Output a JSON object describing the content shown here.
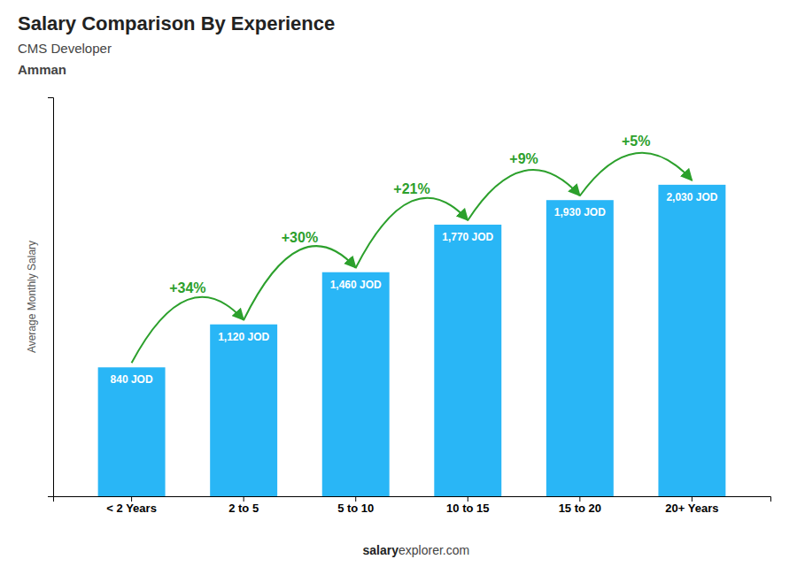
{
  "chart_data": {
    "type": "bar",
    "title": "Salary Comparison By Experience",
    "subtitle": "CMS Developer",
    "location": "Amman",
    "ylabel": "Average Monthly Salary",
    "footer": [
      "salary",
      "explorer.com"
    ],
    "categories": [
      "< 2 Years",
      "2 to 5",
      "5 to 10",
      "10 to 15",
      "15 to 20",
      "20+ Years"
    ],
    "values": [
      840,
      1120,
      1460,
      1770,
      1930,
      2030
    ],
    "value_labels": [
      "840 JOD",
      "1,120 JOD",
      "1,460 JOD",
      "1,770 JOD",
      "1,930 JOD",
      "2,030 JOD"
    ],
    "annotations": [
      "+34%",
      "+30%",
      "+21%",
      "+9%",
      "+5%"
    ],
    "color": "#29b6f6",
    "ylim": [
      0,
      2600
    ],
    "grid": false,
    "data_labels": true,
    "tick_labels": "x"
  }
}
